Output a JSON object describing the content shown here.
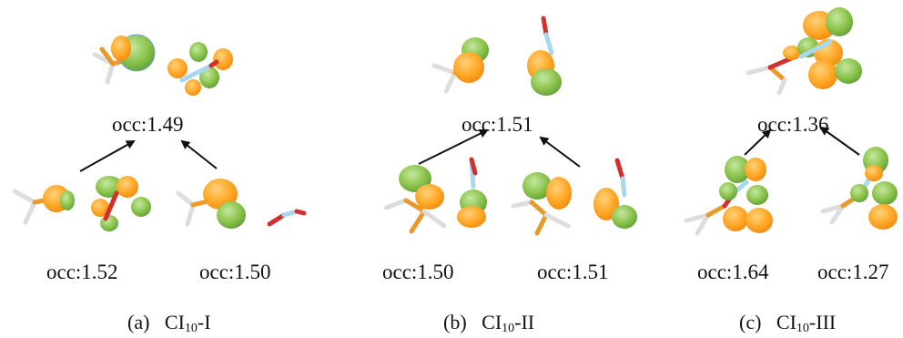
{
  "colors": {
    "lobe_orange": "#ffa726",
    "lobe_green": "#8bc34a",
    "bond_light": "#a8d8f0",
    "bond_orange": "#e89a2a",
    "atom_red": "#d32f2f"
  },
  "panels": [
    {
      "id": "a",
      "caption": {
        "prefix": "(a)",
        "base": "CI",
        "sub": "10",
        "suffix": "-I"
      },
      "top_occ": "occ:1.49",
      "bottom_occ": [
        "occ:1.52",
        "occ:1.50"
      ]
    },
    {
      "id": "b",
      "caption": {
        "prefix": "(b)",
        "base": "CI",
        "sub": "10",
        "suffix": "-II"
      },
      "top_occ": "occ:1.51",
      "bottom_occ": [
        "occ:1.50",
        "occ:1.51"
      ]
    },
    {
      "id": "c",
      "caption": {
        "prefix": "(c)",
        "base": "CI",
        "sub": "10",
        "suffix": "-III"
      },
      "top_occ": "occ:1.36",
      "bottom_occ": [
        "occ:1.64",
        "occ:1.27"
      ]
    }
  ]
}
